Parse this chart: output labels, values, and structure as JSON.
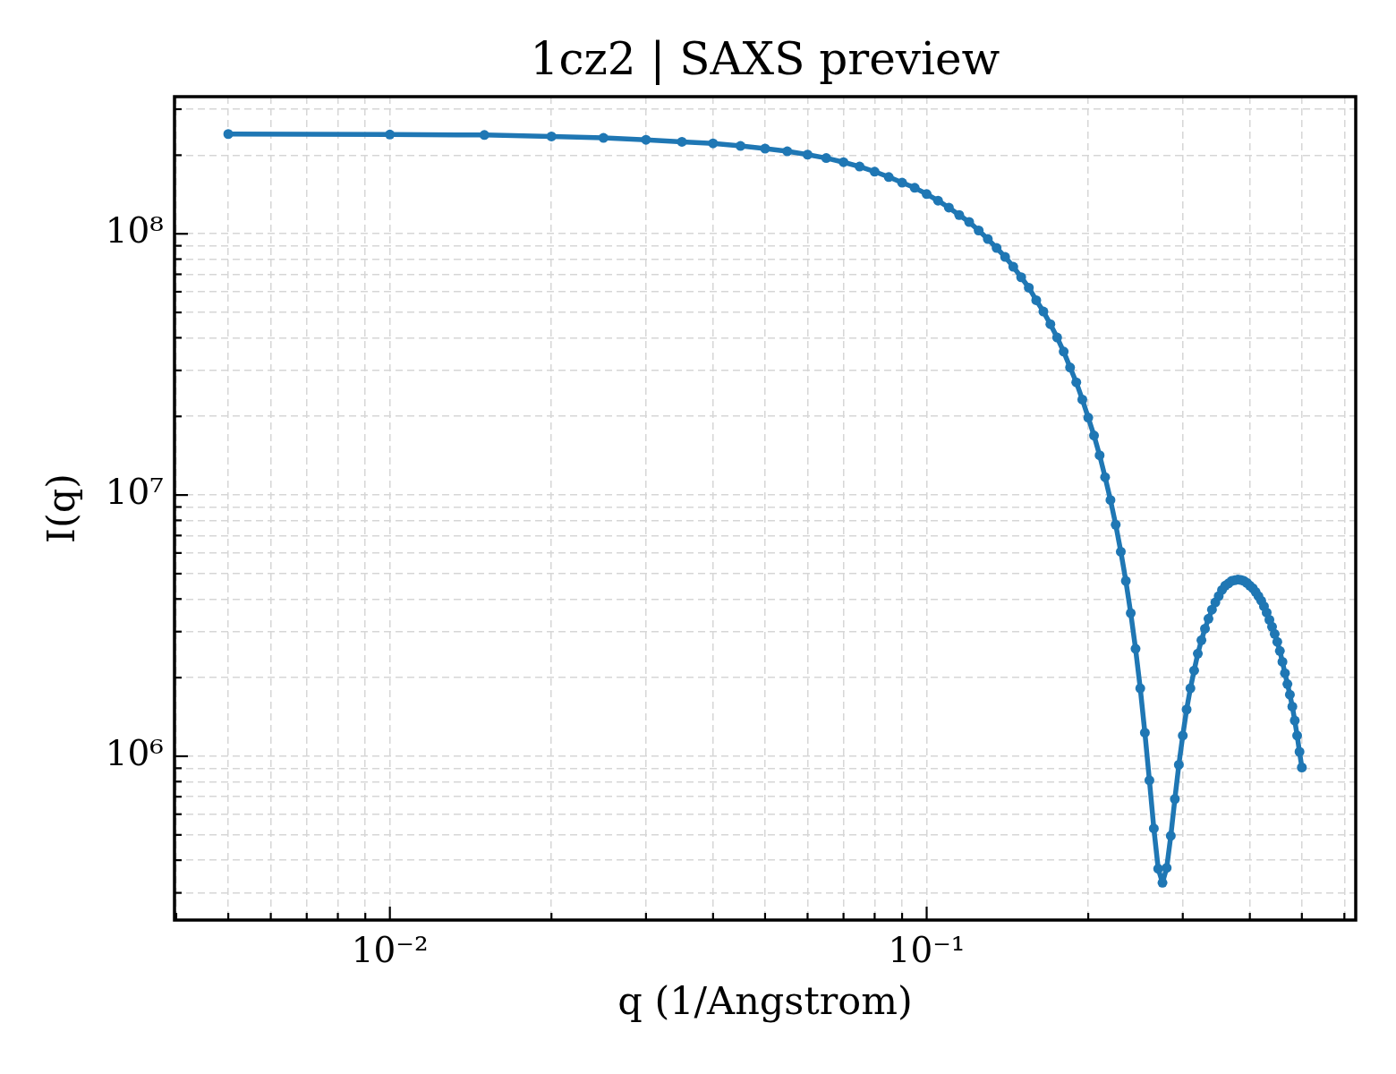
{
  "chart_data": {
    "type": "line",
    "title": "1cz2 | SAXS preview",
    "xlabel": "q (1/Angstrom)",
    "ylabel": "I(q)",
    "x": [
      0.005,
      0.01,
      0.015,
      0.02,
      0.025,
      0.03,
      0.035,
      0.04,
      0.045,
      0.05,
      0.055,
      0.06,
      0.065,
      0.07,
      0.075,
      0.08,
      0.085,
      0.09,
      0.095,
      0.1,
      0.105,
      0.11,
      0.115,
      0.12,
      0.125,
      0.13,
      0.135,
      0.14,
      0.145,
      0.15,
      0.155,
      0.16,
      0.165,
      0.17,
      0.175,
      0.18,
      0.185,
      0.19,
      0.195,
      0.2,
      0.205,
      0.21,
      0.215,
      0.22,
      0.225,
      0.23,
      0.235,
      0.24,
      0.245,
      0.25,
      0.255,
      0.26,
      0.265,
      0.27,
      0.275,
      0.28,
      0.285,
      0.29,
      0.295,
      0.3,
      0.305,
      0.31,
      0.315,
      0.32,
      0.325,
      0.33,
      0.335,
      0.34,
      0.345,
      0.35,
      0.355,
      0.36,
      0.365,
      0.37,
      0.375,
      0.38,
      0.385,
      0.39,
      0.395,
      0.4,
      0.405,
      0.41,
      0.415,
      0.42,
      0.425,
      0.43,
      0.435,
      0.44,
      0.445,
      0.45,
      0.455,
      0.46,
      0.465,
      0.47,
      0.475,
      0.48,
      0.485,
      0.49,
      0.495,
      0.5
    ],
    "series": [
      {
        "color": "#1f77b4",
        "values": [
          241000000.0,
          240000000.0,
          239000000.0,
          236000000.0,
          233000000.0,
          229000000.0,
          225000000.0,
          222000000.0,
          217000000.0,
          212000000.0,
          207000000.0,
          201000000.0,
          195000000.0,
          188000000.0,
          181000000.0,
          173000000.0,
          165000000.0,
          157000000.0,
          150000000.0,
          142000000.0,
          134000000.0,
          126000000.0,
          118000000.0,
          111000000.0,
          103000000.0,
          95500000.0,
          88300000.0,
          81600000.0,
          74800000.0,
          68200000.0,
          62200000.0,
          55700000.0,
          50400000.0,
          45100000.0,
          40100000.0,
          35400000.0,
          30800000.0,
          27000000.0,
          23200000.0,
          19800000.0,
          16900000.0,
          14200000.0,
          11700000.0,
          9570000.0,
          7700000.0,
          6070000.0,
          4690000.0,
          3530000.0,
          2580000.0,
          1820000.0,
          1230000.0,
          809000.0,
          529000.0,
          371000.0,
          328000.0,
          374000.0,
          496000.0,
          686000.0,
          928000.0,
          1200000.0,
          1510000.0,
          1820000.0,
          2130000.0,
          2470000.0,
          2780000.0,
          3080000.0,
          3360000.0,
          3640000.0,
          3880000.0,
          4100000.0,
          4330000.0,
          4500000.0,
          4590000.0,
          4690000.0,
          4720000.0,
          4750000.0,
          4730000.0,
          4690000.0,
          4610000.0,
          4500000.0,
          4400000.0,
          4260000.0,
          4100000.0,
          3940000.0,
          3750000.0,
          3550000.0,
          3330000.0,
          3130000.0,
          2940000.0,
          2740000.0,
          2530000.0,
          2300000.0,
          2080000.0,
          1890000.0,
          1720000.0,
          1550000.0,
          1370000.0,
          1200000.0,
          1040000.0,
          906000.0
        ]
      }
    ],
    "xlim": [
      0.00397,
      0.63
    ],
    "ylim": [
      236000.0,
      335000000.0
    ],
    "xticks": [
      {
        "value": 0.004,
        "label": null
      },
      {
        "value": 0.005,
        "label": null
      },
      {
        "value": 0.006,
        "label": null
      },
      {
        "value": 0.007,
        "label": null
      },
      {
        "value": 0.008,
        "label": null
      },
      {
        "value": 0.009,
        "label": null
      },
      {
        "value": 0.01,
        "label": "10⁻²"
      },
      {
        "value": 0.02,
        "label": null
      },
      {
        "value": 0.03,
        "label": null
      },
      {
        "value": 0.04,
        "label": null
      },
      {
        "value": 0.05,
        "label": null
      },
      {
        "value": 0.06,
        "label": null
      },
      {
        "value": 0.07,
        "label": null
      },
      {
        "value": 0.08,
        "label": null
      },
      {
        "value": 0.09,
        "label": null
      },
      {
        "value": 0.1,
        "label": "10⁻¹"
      },
      {
        "value": 0.2,
        "label": null
      },
      {
        "value": 0.3,
        "label": null
      },
      {
        "value": 0.4,
        "label": null
      },
      {
        "value": 0.5,
        "label": null
      },
      {
        "value": 0.6,
        "label": null
      }
    ],
    "yticks": [
      {
        "value": 300000.0,
        "label": null
      },
      {
        "value": 400000.0,
        "label": null
      },
      {
        "value": 500000.0,
        "label": null
      },
      {
        "value": 600000.0,
        "label": null
      },
      {
        "value": 700000.0,
        "label": null
      },
      {
        "value": 800000.0,
        "label": null
      },
      {
        "value": 900000.0,
        "label": null
      },
      {
        "value": 1000000.0,
        "label": "10⁶"
      },
      {
        "value": 2000000.0,
        "label": null
      },
      {
        "value": 3000000.0,
        "label": null
      },
      {
        "value": 4000000.0,
        "label": null
      },
      {
        "value": 5000000.0,
        "label": null
      },
      {
        "value": 6000000.0,
        "label": null
      },
      {
        "value": 7000000.0,
        "label": null
      },
      {
        "value": 8000000.0,
        "label": null
      },
      {
        "value": 9000000.0,
        "label": null
      },
      {
        "value": 10000000.0,
        "label": "10⁷"
      },
      {
        "value": 20000000.0,
        "label": null
      },
      {
        "value": 30000000.0,
        "label": null
      },
      {
        "value": 40000000.0,
        "label": null
      },
      {
        "value": 50000000.0,
        "label": null
      },
      {
        "value": 60000000.0,
        "label": null
      },
      {
        "value": 70000000.0,
        "label": null
      },
      {
        "value": 80000000.0,
        "label": null
      },
      {
        "value": 90000000.0,
        "label": null
      },
      {
        "value": 100000000.0,
        "label": "10⁸"
      },
      {
        "value": 200000000.0,
        "label": null
      },
      {
        "value": 300000000.0,
        "label": null
      }
    ],
    "log": "xy",
    "grid": true,
    "legend": false,
    "marker": "circle",
    "line_style": "solid"
  }
}
